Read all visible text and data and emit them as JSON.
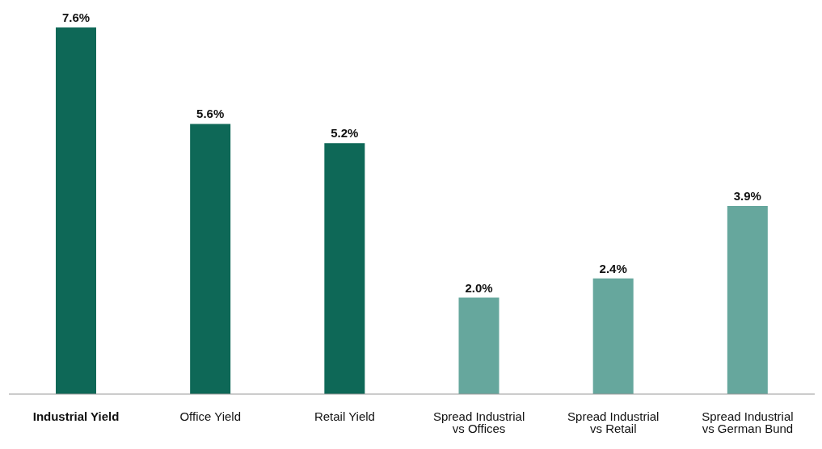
{
  "chart_data": {
    "type": "bar",
    "categories": [
      "Industrial Yield",
      "Office Yield",
      "Retail Yield",
      "Spread Industrial vs Offices",
      "Spread Industrial vs Retail",
      "Spread Industrial vs German Bund"
    ],
    "values": [
      7.6,
      5.6,
      5.2,
      2.0,
      2.4,
      3.9
    ],
    "colors": [
      "#0e6857",
      "#0e6857",
      "#0e6857",
      "#66a79d",
      "#66a79d",
      "#66a79d"
    ],
    "value_labels": [
      "7.6%",
      "5.6%",
      "5.2%",
      "2.0%",
      "2.4%",
      "3.9%"
    ]
  }
}
